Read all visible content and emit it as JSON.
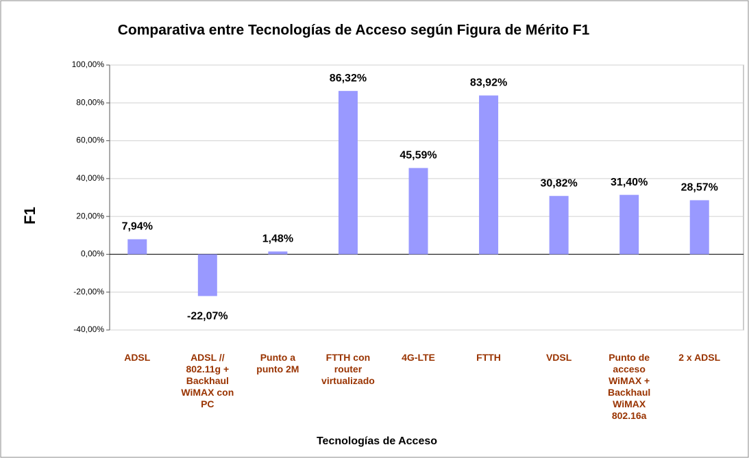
{
  "chart_data": {
    "type": "bar",
    "title": "Comparativa entre Tecnologías de Acceso según Figura de Mérito F1",
    "x_label": "Tecnologías de Acceso",
    "y_label": "F1",
    "categories": [
      "ADSL",
      "ADSL // 802.11g + Backhaul WiMAX con PC",
      "Punto a punto 2M",
      "FTTH con router virtualizado",
      "4G-LTE",
      "FTTH",
      "VDSL",
      "Punto de acceso WiMAX + Backhaul WiMAX 802.16a",
      "2 x ADSL"
    ],
    "values": [
      7.94,
      -22.07,
      1.48,
      86.32,
      45.59,
      83.92,
      30.82,
      31.4,
      28.57
    ],
    "value_labels": [
      "7,94%",
      "-22,07%",
      "1,48%",
      "86,32%",
      "45,59%",
      "83,92%",
      "30,82%",
      "31,40%",
      "28,57%"
    ],
    "color": "#9999ff",
    "ylim": [
      -40,
      100
    ],
    "yticks": [
      {
        "value": -40,
        "label": "-40,00%"
      },
      {
        "value": -20,
        "label": "-20,00%"
      },
      {
        "value": 0,
        "label": "0,00%"
      },
      {
        "value": 20,
        "label": "20,00%"
      },
      {
        "value": 40,
        "label": "40,00%"
      },
      {
        "value": 60,
        "label": "60,00%"
      },
      {
        "value": 80,
        "label": "80,00%"
      },
      {
        "value": 100,
        "label": "100,00%"
      }
    ],
    "grid": true
  }
}
